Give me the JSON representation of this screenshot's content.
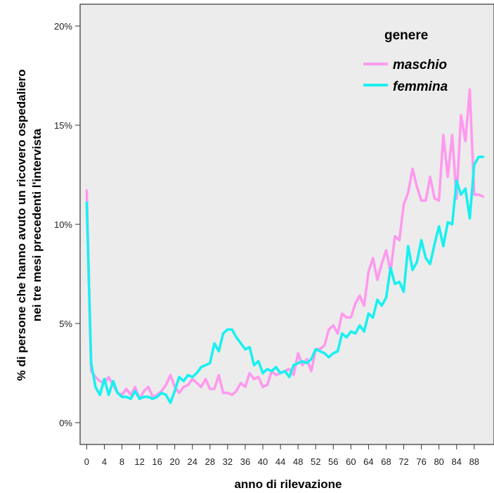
{
  "chart_data": {
    "type": "line",
    "xlabel": "anno di rilevazione",
    "ylabel_lines": [
      "% di persone che hanno avuto un ricovero ospedaliero",
      "nei tre mesi precedenti l'intervista"
    ],
    "x_ticks": [
      "0",
      "4",
      "8",
      "12",
      "16",
      "20",
      "24",
      "28",
      "32",
      "36",
      "40",
      "44",
      "48",
      "52",
      "56",
      "60",
      "64",
      "68",
      "72",
      "76",
      "80",
      "84",
      "88"
    ],
    "y_ticks": [
      "0%",
      "5%",
      "10%",
      "15%",
      "20%"
    ],
    "xlim": [
      -1.5,
      92.5
    ],
    "ylim": [
      -1.1,
      21.1
    ],
    "grid": false,
    "background_color": "#ececec",
    "legend": {
      "title": "genere",
      "placement": "top-right",
      "entries": [
        {
          "label": "maschio",
          "color": "#ff99ee"
        },
        {
          "label": "femmina",
          "color": "#19f0f0"
        }
      ]
    },
    "x": [
      0,
      1,
      2,
      3,
      4,
      5,
      6,
      7,
      8,
      9,
      10,
      11,
      12,
      13,
      14,
      15,
      16,
      17,
      18,
      19,
      20,
      21,
      22,
      23,
      24,
      25,
      26,
      27,
      28,
      29,
      30,
      31,
      32,
      33,
      34,
      35,
      36,
      37,
      38,
      39,
      40,
      41,
      42,
      43,
      44,
      45,
      46,
      47,
      48,
      49,
      50,
      51,
      52,
      53,
      54,
      55,
      56,
      57,
      58,
      59,
      60,
      61,
      62,
      63,
      64,
      65,
      66,
      67,
      68,
      69,
      70,
      71,
      72,
      73,
      74,
      75,
      76,
      77,
      78,
      79,
      80,
      81,
      82,
      83,
      84,
      85,
      86,
      87,
      88,
      89,
      90
    ],
    "series": [
      {
        "name": "maschio",
        "color": "#ff99ee",
        "values": [
          11.7,
          2.6,
          2.3,
          2.1,
          2.0,
          2.3,
          1.9,
          1.5,
          1.4,
          1.7,
          1.4,
          1.8,
          1.2,
          1.6,
          1.8,
          1.3,
          1.4,
          1.6,
          1.9,
          2.4,
          1.8,
          1.5,
          1.8,
          1.9,
          2.2,
          2.0,
          1.8,
          2.2,
          1.7,
          1.7,
          2.4,
          1.5,
          1.5,
          1.4,
          1.6,
          2.0,
          1.8,
          2.5,
          2.2,
          2.3,
          1.8,
          1.9,
          2.6,
          2.4,
          2.5,
          2.6,
          2.7,
          2.4,
          3.5,
          2.9,
          3.2,
          2.6,
          3.7,
          3.7,
          3.9,
          4.7,
          4.9,
          4.5,
          5.5,
          5.3,
          5.3,
          6.0,
          6.4,
          5.9,
          7.6,
          8.3,
          7.2,
          8.0,
          8.7,
          7.6,
          9.4,
          9.2,
          11.0,
          11.6,
          12.8,
          11.9,
          11.2,
          11.2,
          12.4,
          11.3,
          11.2,
          14.5,
          12.4,
          14.5,
          11.3,
          15.5,
          14.2,
          16.8,
          11.5,
          11.5,
          11.4
        ]
      },
      {
        "name": "femmina",
        "color": "#19f0f0",
        "values": [
          11.1,
          3.0,
          1.8,
          1.4,
          2.2,
          1.4,
          2.1,
          1.5,
          1.3,
          1.3,
          1.2,
          1.6,
          1.2,
          1.3,
          1.3,
          1.2,
          1.3,
          1.5,
          1.4,
          1.0,
          1.6,
          2.3,
          2.1,
          2.4,
          2.3,
          2.5,
          2.8,
          2.9,
          3.0,
          4.0,
          3.6,
          4.5,
          4.7,
          4.7,
          4.3,
          4.0,
          3.7,
          3.8,
          2.9,
          3.1,
          2.5,
          2.7,
          2.6,
          2.8,
          2.5,
          2.6,
          2.3,
          2.9,
          3.0,
          3.1,
          3.0,
          3.2,
          3.7,
          3.6,
          3.5,
          3.3,
          3.5,
          3.6,
          4.5,
          4.3,
          4.6,
          4.5,
          4.9,
          4.6,
          5.5,
          5.3,
          6.2,
          5.9,
          6.3,
          7.8,
          7.0,
          7.1,
          6.6,
          8.9,
          7.7,
          8.1,
          9.2,
          8.3,
          8.0,
          9.0,
          9.9,
          8.9,
          10.1,
          10.0,
          12.2,
          11.5,
          11.8,
          10.3,
          13.0,
          13.4,
          13.4
        ]
      }
    ]
  }
}
